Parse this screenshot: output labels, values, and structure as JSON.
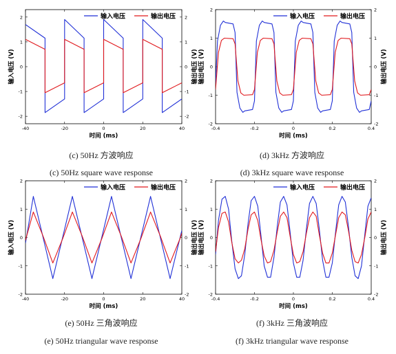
{
  "chart_data": [
    {
      "type": "line",
      "caption_cn": "(c) 50Hz 方波响应",
      "caption_en": "(c) 50Hz square wave response",
      "xlabel": "时间 (ms)",
      "ylabel_left": "输入电压 (V)",
      "ylabel_right": "输出电压 (V)",
      "xlim": [
        -40,
        40
      ],
      "ylim": [
        -2.3,
        2.3
      ],
      "xticks": [
        "-40",
        "-20",
        "0",
        "20",
        "40"
      ],
      "yticks": [
        "-2",
        "-1",
        "0",
        "1",
        "2"
      ],
      "legend": [
        "输入电压",
        "输出电压"
      ],
      "legend_position": "top-right",
      "grid": false,
      "series": [
        {
          "name": "输入电压",
          "color": "#1f2fd6",
          "x": [
            -40,
            -30,
            -30,
            -20,
            -20,
            -10,
            -10,
            0,
            0,
            10,
            10,
            20,
            20,
            30,
            30,
            40
          ],
          "y": [
            1.7,
            1.15,
            -1.85,
            -1.3,
            1.9,
            1.15,
            -1.85,
            -1.3,
            1.9,
            1.15,
            -1.85,
            -1.3,
            1.9,
            1.15,
            -1.85,
            -1.3
          ]
        },
        {
          "name": "输出电压",
          "color": "#e0171b",
          "x": [
            -40,
            -30,
            -30,
            -20,
            -20,
            -10,
            -10,
            0,
            0,
            10,
            10,
            20,
            20,
            30,
            30,
            40
          ],
          "y": [
            1.1,
            0.7,
            -1.05,
            -0.65,
            1.1,
            0.7,
            -1.05,
            -0.65,
            1.1,
            0.7,
            -1.05,
            -0.65,
            1.1,
            0.7,
            -1.05,
            -0.65
          ]
        }
      ]
    },
    {
      "type": "line",
      "caption_cn": "(d) 3kHz 方波响应",
      "caption_en": "(d) 3kHz square wave response",
      "xlabel": "时间 (ms)",
      "ylabel_left": "输出电压 (V)",
      "ylabel_right": "输出电压 (V)",
      "xlim": [
        -0.4,
        0.4
      ],
      "ylim": [
        -2.0,
        2.0
      ],
      "xticks": [
        "-0.4",
        "-0.2",
        "0",
        "0.2",
        "0.4"
      ],
      "yticks": [
        "-2",
        "-1",
        "0",
        "1",
        "2"
      ],
      "legend": [
        "输入电压",
        "输出电压"
      ],
      "legend_position": "top-right",
      "grid": false,
      "series": [
        {
          "name": "输入电压",
          "color": "#1f2fd6",
          "x": [
            -0.4,
            -0.39,
            -0.375,
            -0.36,
            -0.35,
            -0.31,
            -0.3,
            -0.29,
            -0.275,
            -0.26,
            -0.25,
            -0.21,
            -0.2,
            -0.19,
            -0.175,
            -0.16,
            -0.15,
            -0.11,
            -0.1,
            -0.09,
            -0.075,
            -0.06,
            -0.05,
            -0.01,
            0.0,
            0.01,
            0.025,
            0.04,
            0.05,
            0.09,
            0.1,
            0.11,
            0.125,
            0.14,
            0.15,
            0.19,
            0.2,
            0.21,
            0.225,
            0.24,
            0.25,
            0.29,
            0.3,
            0.31,
            0.325,
            0.34,
            0.35,
            0.39,
            0.4
          ],
          "y": [
            -0.6,
            0.9,
            1.45,
            1.6,
            1.55,
            1.5,
            1.2,
            -0.9,
            -1.45,
            -1.6,
            -1.55,
            -1.5,
            -1.2,
            0.9,
            1.45,
            1.6,
            1.55,
            1.5,
            1.2,
            -0.9,
            -1.45,
            -1.6,
            -1.55,
            -1.5,
            -1.2,
            0.9,
            1.45,
            1.6,
            1.55,
            1.5,
            1.2,
            -0.9,
            -1.45,
            -1.6,
            -1.55,
            -1.5,
            -1.2,
            0.9,
            1.45,
            1.6,
            1.55,
            1.5,
            1.2,
            -0.9,
            -1.45,
            -1.6,
            -1.55,
            -1.5,
            -1.2
          ]
        },
        {
          "name": "输出电压",
          "color": "#e0171b",
          "x": [
            -0.4,
            -0.385,
            -0.37,
            -0.355,
            -0.31,
            -0.3,
            -0.285,
            -0.27,
            -0.255,
            -0.21,
            -0.2,
            -0.185,
            -0.17,
            -0.155,
            -0.11,
            -0.1,
            -0.085,
            -0.07,
            -0.055,
            -0.01,
            0.0,
            0.015,
            0.03,
            0.045,
            0.09,
            0.1,
            0.115,
            0.13,
            0.145,
            0.19,
            0.2,
            0.215,
            0.23,
            0.245,
            0.29,
            0.3,
            0.315,
            0.33,
            0.345,
            0.39,
            0.4
          ],
          "y": [
            -0.8,
            0.5,
            0.92,
            1.0,
            0.98,
            0.8,
            -0.5,
            -0.92,
            -1.0,
            -0.98,
            -0.8,
            0.5,
            0.92,
            1.0,
            0.98,
            0.8,
            -0.5,
            -0.92,
            -1.0,
            -0.98,
            -0.8,
            0.5,
            0.92,
            1.0,
            0.98,
            0.8,
            -0.5,
            -0.92,
            -1.0,
            -0.98,
            -0.8,
            0.5,
            0.92,
            1.0,
            0.98,
            0.8,
            -0.5,
            -0.92,
            -1.0,
            -0.98,
            -0.8
          ]
        }
      ]
    },
    {
      "type": "line",
      "caption_cn": "(e) 50Hz 三角波响应",
      "caption_en": "(e) 50Hz triangular wave response",
      "xlabel": "时间 (ms)",
      "ylabel_left": "输入电压 (V)",
      "ylabel_right": "输出电压 (V)",
      "xlim": [
        -40,
        40
      ],
      "ylim": [
        -2.0,
        2.0
      ],
      "xticks": [
        "-40",
        "-20",
        "0",
        "20",
        "40"
      ],
      "yticks": [
        "-2",
        "-1",
        "0",
        "1",
        "2"
      ],
      "legend": [
        "输入电压",
        "输出电压"
      ],
      "legend_position": "top-right",
      "grid": false,
      "series": [
        {
          "name": "输入电压",
          "color": "#1f2fd6",
          "x": [
            -40,
            -36,
            -26,
            -16,
            -6,
            4,
            14,
            24,
            34,
            40
          ],
          "y": [
            -0.2,
            1.45,
            -1.45,
            1.45,
            -1.45,
            1.45,
            -1.45,
            1.45,
            -1.45,
            0.25
          ]
        },
        {
          "name": "输出电压",
          "color": "#e0171b",
          "x": [
            -40,
            -36,
            -31,
            -26,
            -21,
            -16,
            -11,
            -6,
            -1,
            4,
            9,
            14,
            19,
            24,
            29,
            34,
            39,
            40
          ],
          "y": [
            -0.1,
            0.9,
            0.05,
            -0.9,
            -0.05,
            0.9,
            0.05,
            -0.9,
            -0.05,
            0.9,
            0.05,
            -0.9,
            -0.05,
            0.9,
            0.05,
            -0.9,
            -0.05,
            0.15
          ]
        }
      ]
    },
    {
      "type": "line",
      "caption_cn": "(f) 3kHz 三角波响应",
      "caption_en": "(f) 3kHz triangular wave response",
      "xlabel": "时间 (ms)",
      "ylabel_left": "输出电压 (V)",
      "ylabel_right": "输出电压 (V)",
      "xlim": [
        -0.4,
        0.4
      ],
      "ylim": [
        -2.0,
        2.0
      ],
      "xticks": [
        "-0.4",
        "-0.2",
        "0",
        "0.2",
        "0.4"
      ],
      "yticks": [
        "-2",
        "-1",
        "0",
        "1",
        "2"
      ],
      "legend": [
        "输入电压",
        "输出电压"
      ],
      "legend_position": "top-right",
      "grid": false,
      "series": [
        {
          "name": "输入电压",
          "color": "#1f2fd6",
          "x": [
            -0.4,
            -0.385,
            -0.367,
            -0.35,
            -0.333,
            -0.317,
            -0.3,
            -0.283,
            -0.267,
            -0.25,
            -0.233,
            -0.217,
            -0.2,
            -0.183,
            -0.167,
            -0.15,
            -0.133,
            -0.117,
            -0.1,
            -0.083,
            -0.067,
            -0.05,
            -0.033,
            -0.017,
            0.0,
            0.017,
            0.033,
            0.05,
            0.067,
            0.083,
            0.1,
            0.117,
            0.133,
            0.15,
            0.167,
            0.183,
            0.2,
            0.217,
            0.233,
            0.25,
            0.267,
            0.283,
            0.3,
            0.317,
            0.333,
            0.35,
            0.367,
            0.383,
            0.4
          ],
          "y": [
            -0.6,
            0.6,
            1.35,
            1.45,
            1.0,
            -0.1,
            -1.1,
            -1.45,
            -1.35,
            -0.6,
            0.5,
            1.3,
            1.45,
            1.1,
            0.1,
            -1.0,
            -1.4,
            -1.4,
            -0.7,
            0.4,
            1.25,
            1.45,
            1.15,
            0.2,
            -0.9,
            -1.4,
            -1.4,
            -0.8,
            0.3,
            1.2,
            1.45,
            1.2,
            0.3,
            -0.8,
            -1.4,
            -1.4,
            -0.9,
            0.2,
            1.15,
            1.45,
            1.25,
            0.4,
            -0.7,
            -1.35,
            -1.45,
            -1.0,
            0.1,
            1.1,
            1.4
          ]
        },
        {
          "name": "输出电压",
          "color": "#e0171b",
          "x": [
            -0.4,
            -0.385,
            -0.367,
            -0.35,
            -0.333,
            -0.317,
            -0.3,
            -0.283,
            -0.267,
            -0.25,
            -0.233,
            -0.217,
            -0.2,
            -0.183,
            -0.167,
            -0.15,
            -0.133,
            -0.117,
            -0.1,
            -0.083,
            -0.067,
            -0.05,
            -0.033,
            -0.017,
            0.0,
            0.017,
            0.033,
            0.05,
            0.067,
            0.083,
            0.1,
            0.117,
            0.133,
            0.15,
            0.167,
            0.183,
            0.2,
            0.217,
            0.233,
            0.25,
            0.267,
            0.283,
            0.3,
            0.317,
            0.333,
            0.35,
            0.367,
            0.383,
            0.4
          ],
          "y": [
            -0.5,
            0.35,
            0.85,
            0.9,
            0.55,
            -0.15,
            -0.75,
            -0.9,
            -0.8,
            -0.4,
            0.3,
            0.8,
            0.9,
            0.6,
            -0.05,
            -0.65,
            -0.9,
            -0.85,
            -0.45,
            0.2,
            0.75,
            0.9,
            0.7,
            0.05,
            -0.6,
            -0.9,
            -0.85,
            -0.5,
            0.15,
            0.7,
            0.9,
            0.75,
            0.1,
            -0.55,
            -0.9,
            -0.9,
            -0.55,
            0.1,
            0.7,
            0.9,
            0.8,
            0.25,
            -0.45,
            -0.85,
            -0.9,
            -0.6,
            0.0,
            0.65,
            0.9
          ]
        }
      ]
    }
  ]
}
